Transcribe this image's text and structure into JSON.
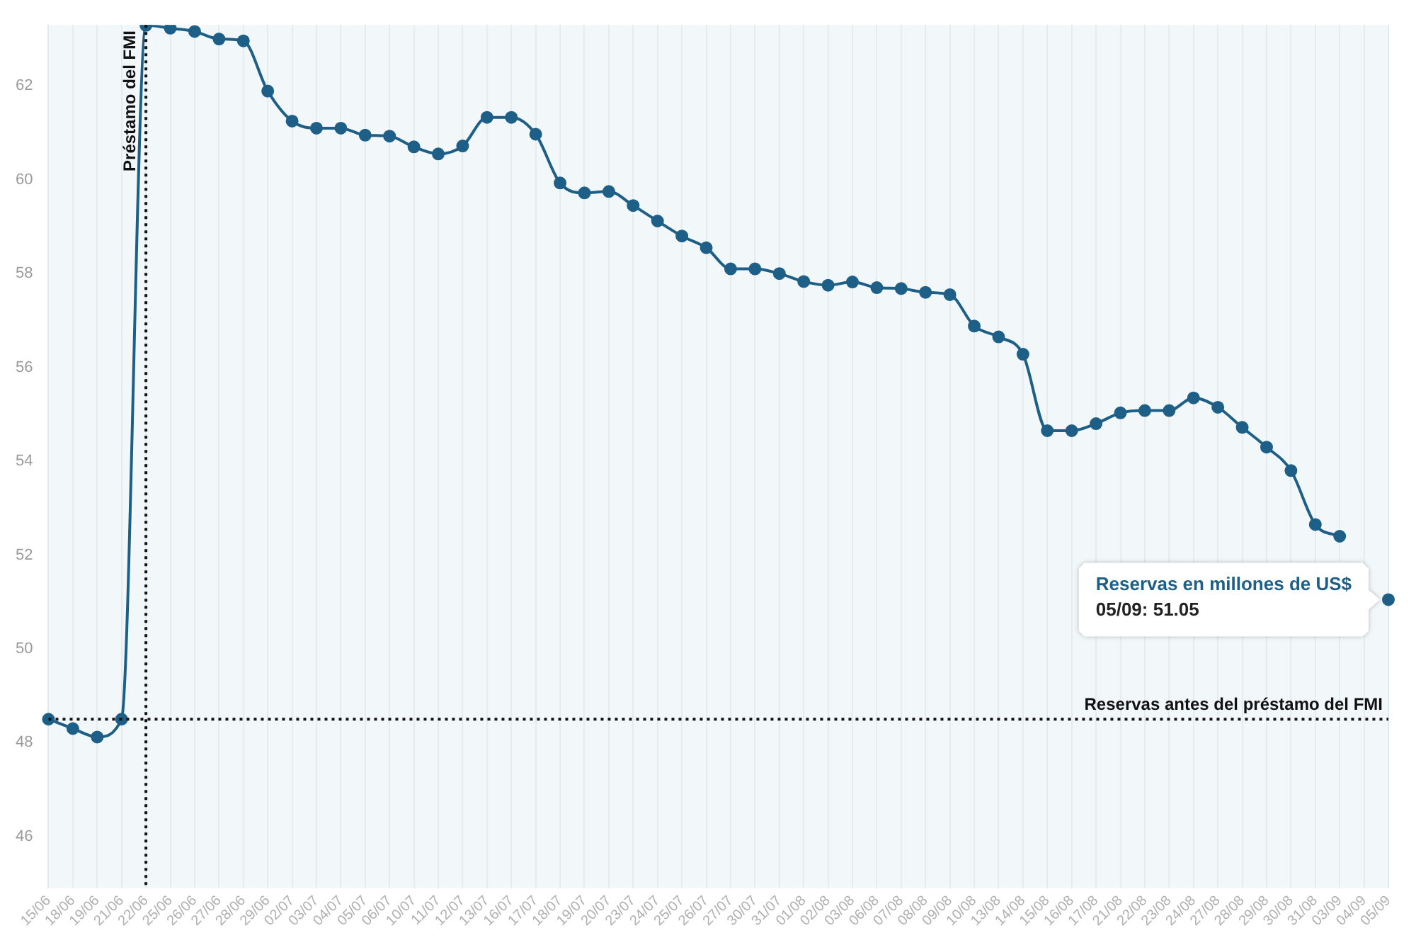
{
  "chart_data": {
    "type": "line",
    "categories": [
      "15/06",
      "18/06",
      "19/06",
      "21/06",
      "22/06",
      "25/06",
      "26/06",
      "27/06",
      "28/06",
      "29/06",
      "02/07",
      "03/07",
      "04/07",
      "05/07",
      "06/07",
      "10/07",
      "11/07",
      "12/07",
      "13/07",
      "16/07",
      "17/07",
      "18/07",
      "19/07",
      "20/07",
      "23/07",
      "24/07",
      "25/07",
      "26/07",
      "27/07",
      "30/07",
      "31/07",
      "01/08",
      "02/08",
      "03/08",
      "06/08",
      "07/08",
      "08/08",
      "09/08",
      "10/08",
      "13/08",
      "14/08",
      "15/08",
      "16/08",
      "17/08",
      "21/08",
      "22/08",
      "23/08",
      "24/08",
      "27/08",
      "28/08",
      "29/08",
      "30/08",
      "31/08",
      "03/09",
      "04/09",
      "05/09"
    ],
    "series": [
      {
        "color": "#1d5f86",
        "values": [
          48.5,
          48.3,
          48.12,
          48.5,
          63.29,
          63.23,
          63.16,
          63.0,
          62.96,
          61.89,
          61.25,
          61.1,
          61.1,
          60.95,
          60.93,
          60.7,
          60.55,
          60.72,
          61.33,
          61.33,
          60.97,
          59.93,
          59.72,
          59.75,
          59.45,
          59.12,
          58.8,
          58.55,
          58.1,
          58.1,
          58.0,
          57.83,
          57.75,
          57.82,
          57.7,
          57.68,
          57.6,
          57.55,
          56.88,
          56.65,
          56.28,
          54.65,
          54.65,
          54.8,
          55.03,
          55.08,
          55.08,
          55.35,
          55.15,
          54.72,
          54.3,
          53.8,
          52.65,
          52.4,
          null,
          51.05
        ]
      }
    ],
    "ylim": [
      44.9,
      63.3
    ],
    "yticks": [
      46,
      48,
      50,
      52,
      54,
      56,
      58,
      60,
      62
    ],
    "grid": "x",
    "legend": false,
    "marker": "circle",
    "line_style": "solid",
    "ref_lines": [
      {
        "axis": "x",
        "value": "22/06",
        "label": "Préstamo del FMI",
        "color": "#111111",
        "line_style": "dotted"
      },
      {
        "axis": "y",
        "value": 48.5,
        "label": "Reservas antes del préstamo del FMI",
        "color": "#111111",
        "line_style": "dotted"
      }
    ],
    "annotations": [
      {
        "text": "Reservas en millones de US$\n05/09: 51.05",
        "x": "05/09",
        "y": 51.05
      }
    ]
  }
}
